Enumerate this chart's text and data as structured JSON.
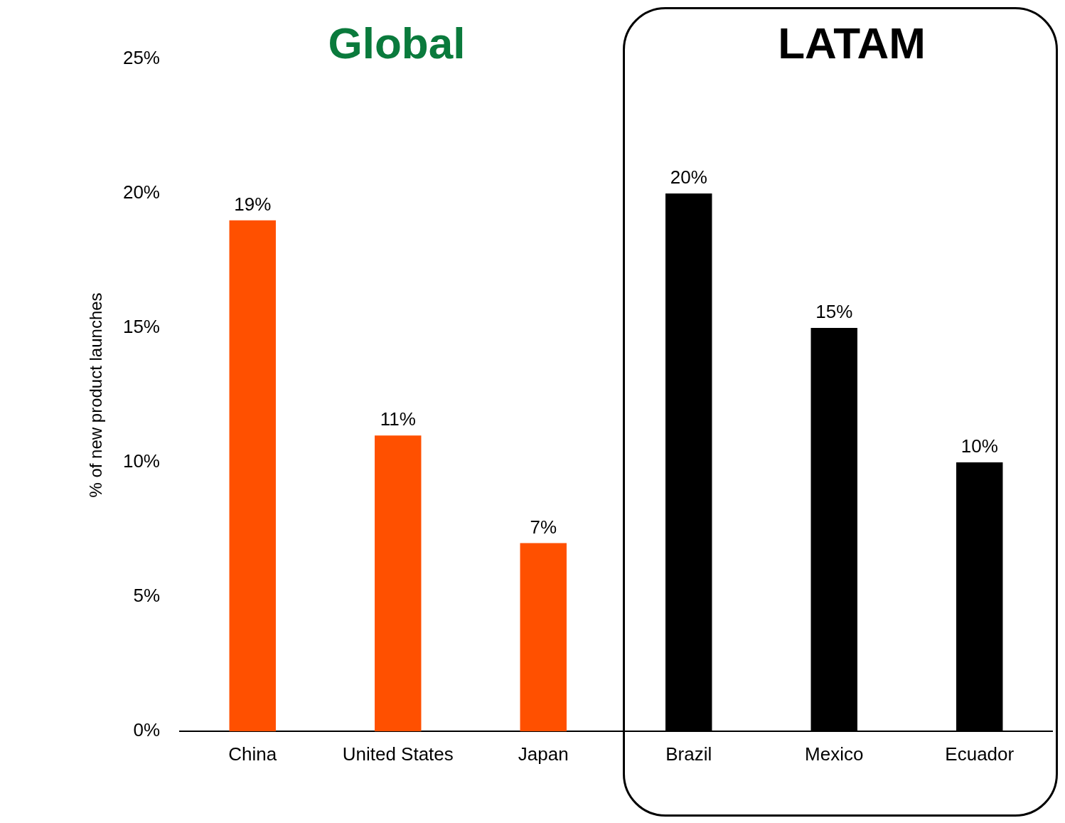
{
  "chart_data": {
    "type": "bar",
    "ylabel": "% of new product launches",
    "categories": [
      "China",
      "United States",
      "Japan",
      "Brazil",
      "Mexico",
      "Ecuador"
    ],
    "values": [
      19,
      11,
      7,
      20,
      15,
      10
    ],
    "colors": [
      "#ff5000",
      "#ff5000",
      "#ff5000",
      "#000000",
      "#000000",
      "#000000"
    ],
    "value_labels": [
      "19%",
      "11%",
      "7%",
      "20%",
      "15%",
      "10%"
    ],
    "ylim": [
      0,
      25
    ],
    "yticks": [
      {
        "value": 0,
        "label": "0%"
      },
      {
        "value": 5,
        "label": "5%"
      },
      {
        "value": 10,
        "label": "10%"
      },
      {
        "value": 15,
        "label": "15%"
      },
      {
        "value": 20,
        "label": "20%"
      },
      {
        "value": 25,
        "label": "25%"
      }
    ],
    "grid": false,
    "legend": false,
    "annotations": [
      "Global",
      "LATAM"
    ]
  }
}
